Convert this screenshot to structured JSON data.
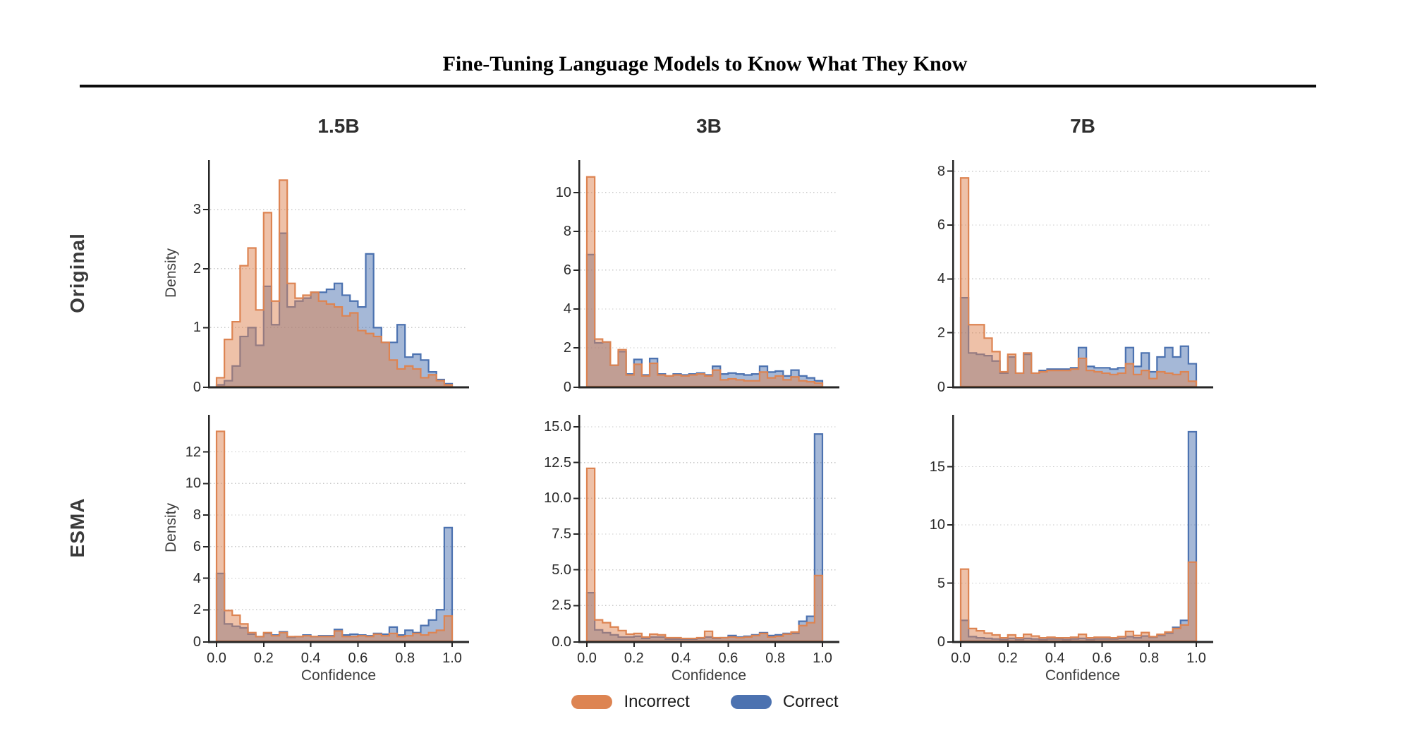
{
  "title": "Fine-Tuning Language Models to Know What They Know",
  "layout": {
    "rows": [
      "Original",
      "ESMA"
    ],
    "cols": [
      "1.5B",
      "3B",
      "7B"
    ]
  },
  "axis": {
    "xlabel": "Confidence",
    "ylabel": "Density",
    "xticks": [
      "0.0",
      "0.2",
      "0.4",
      "0.6",
      "0.8",
      "1.0"
    ]
  },
  "legend": [
    {
      "label": "Incorrect",
      "color": "#DD8452"
    },
    {
      "label": "Correct",
      "color": "#4C72B0"
    }
  ],
  "colors": {
    "incorrect": "#DD8452",
    "correct": "#4C72B0",
    "grid": "#c9c9c9",
    "spine": "#262626",
    "fill_opacity": 0.5
  },
  "chart_data": [
    {
      "id": "original-1.5b",
      "row": "Original",
      "col": "1.5B",
      "type": "histogram-step",
      "bins": 30,
      "x_range": [
        0,
        1
      ],
      "ylim": [
        0,
        3.72
      ],
      "yticks": [
        "0",
        "1",
        "2",
        "3"
      ],
      "show_x_labels": false,
      "series": [
        {
          "name": "Incorrect",
          "color": "#DD8452",
          "values": [
            0.15,
            0.8,
            1.1,
            2.05,
            2.35,
            1.3,
            2.95,
            1.45,
            3.5,
            1.75,
            1.5,
            1.55,
            1.6,
            1.45,
            1.4,
            1.35,
            1.2,
            1.25,
            0.95,
            0.9,
            0.85,
            0.75,
            0.45,
            0.3,
            0.35,
            0.3,
            0.15,
            0.2,
            0.1,
            0.03
          ]
        },
        {
          "name": "Correct",
          "color": "#4C72B0",
          "values": [
            0.03,
            0.1,
            0.35,
            0.85,
            1.0,
            0.7,
            1.7,
            1.05,
            2.6,
            1.35,
            1.45,
            1.5,
            1.6,
            1.6,
            1.65,
            1.75,
            1.55,
            1.45,
            1.35,
            2.25,
            1.0,
            0.75,
            0.75,
            1.05,
            0.5,
            0.55,
            0.45,
            0.25,
            0.12,
            0.05
          ]
        }
      ]
    },
    {
      "id": "original-3b",
      "row": "Original",
      "col": "3B",
      "type": "histogram-step",
      "bins": 30,
      "x_range": [
        0,
        1
      ],
      "ylim": [
        0,
        11.3
      ],
      "yticks": [
        "0",
        "2",
        "4",
        "6",
        "8",
        "10"
      ],
      "show_x_labels": false,
      "series": [
        {
          "name": "Incorrect",
          "color": "#DD8452",
          "values": [
            10.8,
            2.45,
            2.3,
            1.1,
            1.9,
            0.6,
            1.15,
            0.55,
            1.2,
            0.6,
            0.55,
            0.6,
            0.55,
            0.6,
            0.65,
            0.55,
            0.85,
            0.35,
            0.4,
            0.35,
            0.3,
            0.3,
            0.75,
            0.45,
            0.55,
            0.35,
            0.5,
            0.3,
            0.25,
            0.18
          ]
        },
        {
          "name": "Correct",
          "color": "#4C72B0",
          "values": [
            6.8,
            2.25,
            2.3,
            1.1,
            1.8,
            0.65,
            1.4,
            0.6,
            1.45,
            0.65,
            0.55,
            0.65,
            0.6,
            0.65,
            0.7,
            0.6,
            1.05,
            0.65,
            0.7,
            0.65,
            0.6,
            0.65,
            1.05,
            0.75,
            0.8,
            0.55,
            0.85,
            0.55,
            0.45,
            0.3
          ]
        }
      ]
    },
    {
      "id": "original-7b",
      "row": "Original",
      "col": "7B",
      "type": "histogram-step",
      "bins": 30,
      "x_range": [
        0,
        1
      ],
      "ylim": [
        0,
        8.15
      ],
      "yticks": [
        "0",
        "2",
        "4",
        "6",
        "8"
      ],
      "show_x_labels": false,
      "series": [
        {
          "name": "Incorrect",
          "color": "#DD8452",
          "values": [
            7.75,
            2.3,
            2.3,
            1.8,
            1.3,
            0.55,
            1.2,
            0.5,
            1.25,
            0.5,
            0.55,
            0.6,
            0.6,
            0.6,
            0.65,
            1.05,
            0.6,
            0.55,
            0.5,
            0.45,
            0.5,
            0.85,
            0.45,
            0.6,
            0.3,
            0.55,
            0.5,
            0.45,
            0.55,
            0.2
          ]
        },
        {
          "name": "Correct",
          "color": "#4C72B0",
          "values": [
            3.3,
            1.25,
            1.2,
            1.15,
            0.95,
            0.5,
            1.1,
            0.5,
            1.2,
            0.5,
            0.6,
            0.65,
            0.65,
            0.65,
            0.7,
            1.45,
            0.75,
            0.7,
            0.7,
            0.65,
            0.7,
            1.45,
            0.75,
            1.25,
            0.55,
            1.1,
            1.45,
            1.1,
            1.5,
            0.85
          ]
        }
      ]
    },
    {
      "id": "esma-1.5b",
      "row": "ESMA",
      "col": "1.5B",
      "type": "histogram-step",
      "bins": 30,
      "x_range": [
        0,
        1
      ],
      "ylim": [
        0,
        13.9
      ],
      "yticks": [
        "0",
        "2",
        "4",
        "6",
        "8",
        "10",
        "12"
      ],
      "show_x_labels": true,
      "series": [
        {
          "name": "Incorrect",
          "color": "#DD8452",
          "values": [
            13.3,
            1.95,
            1.65,
            1.1,
            0.55,
            0.3,
            0.55,
            0.35,
            0.55,
            0.3,
            0.3,
            0.35,
            0.3,
            0.3,
            0.3,
            0.65,
            0.3,
            0.3,
            0.35,
            0.3,
            0.45,
            0.35,
            0.5,
            0.3,
            0.35,
            0.5,
            0.4,
            0.55,
            0.7,
            1.6
          ]
        },
        {
          "name": "Correct",
          "color": "#4C72B0",
          "values": [
            4.3,
            1.1,
            0.95,
            0.85,
            0.45,
            0.3,
            0.5,
            0.4,
            0.6,
            0.25,
            0.3,
            0.4,
            0.3,
            0.35,
            0.35,
            0.75,
            0.4,
            0.45,
            0.4,
            0.35,
            0.5,
            0.45,
            0.9,
            0.4,
            0.7,
            0.55,
            1.0,
            1.35,
            2.0,
            7.2
          ]
        }
      ]
    },
    {
      "id": "esma-3b",
      "row": "ESMA",
      "col": "3B",
      "type": "histogram-step",
      "bins": 30,
      "x_range": [
        0,
        1
      ],
      "ylim": [
        0,
        15.35
      ],
      "yticks": [
        "0.0",
        "2.5",
        "5.0",
        "7.5",
        "10.0",
        "12.5",
        "15.0"
      ],
      "show_x_labels": true,
      "series": [
        {
          "name": "Incorrect",
          "color": "#DD8452",
          "values": [
            12.1,
            1.5,
            1.3,
            1.0,
            0.75,
            0.5,
            0.55,
            0.3,
            0.5,
            0.45,
            0.25,
            0.25,
            0.2,
            0.2,
            0.25,
            0.7,
            0.25,
            0.25,
            0.3,
            0.25,
            0.3,
            0.4,
            0.55,
            0.3,
            0.35,
            0.5,
            0.65,
            1.1,
            1.3,
            4.6
          ]
        },
        {
          "name": "Correct",
          "color": "#4C72B0",
          "values": [
            3.4,
            0.8,
            0.6,
            0.45,
            0.3,
            0.3,
            0.35,
            0.2,
            0.3,
            0.3,
            0.15,
            0.15,
            0.15,
            0.15,
            0.2,
            0.3,
            0.2,
            0.25,
            0.4,
            0.3,
            0.35,
            0.45,
            0.6,
            0.4,
            0.45,
            0.55,
            0.55,
            1.4,
            1.75,
            14.5
          ]
        }
      ]
    },
    {
      "id": "esma-7b",
      "row": "ESMA",
      "col": "7B",
      "type": "histogram-step",
      "bins": 30,
      "x_range": [
        0,
        1
      ],
      "ylim": [
        0,
        18.85
      ],
      "yticks": [
        "0",
        "5",
        "10",
        "15"
      ],
      "show_x_labels": true,
      "series": [
        {
          "name": "Incorrect",
          "color": "#DD8452",
          "values": [
            6.2,
            1.1,
            0.9,
            0.7,
            0.55,
            0.3,
            0.55,
            0.3,
            0.6,
            0.45,
            0.3,
            0.35,
            0.3,
            0.3,
            0.35,
            0.6,
            0.3,
            0.35,
            0.35,
            0.3,
            0.4,
            0.85,
            0.5,
            0.75,
            0.4,
            0.6,
            0.8,
            1.1,
            1.4,
            6.8
          ]
        },
        {
          "name": "Correct",
          "color": "#4C72B0",
          "values": [
            1.8,
            0.4,
            0.3,
            0.25,
            0.2,
            0.15,
            0.25,
            0.15,
            0.25,
            0.2,
            0.15,
            0.2,
            0.2,
            0.15,
            0.2,
            0.25,
            0.15,
            0.2,
            0.2,
            0.2,
            0.25,
            0.4,
            0.3,
            0.45,
            0.35,
            0.5,
            0.7,
            1.2,
            1.8,
            18.0
          ]
        }
      ]
    }
  ]
}
